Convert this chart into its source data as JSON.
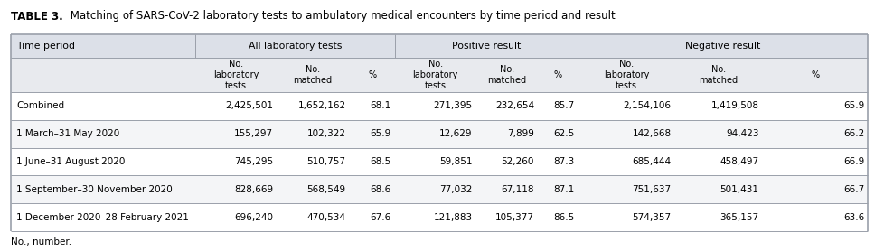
{
  "title_bold": "TABLE 3.",
  "title_rest": " Matching of SARS-CoV-2 laboratory tests to ambulatory medical encounters by time period and result",
  "sub_headers": [
    "No.\nlaboratory\ntests",
    "No.\nmatched",
    "%",
    "No.\nlaboratory\ntests",
    "No.\nmatched",
    "%",
    "No.\nlaboratory\ntests",
    "No.\nmatched",
    "%"
  ],
  "group_labels": [
    "Time period",
    "All laboratory tests",
    "Positive result",
    "Negative result"
  ],
  "rows": [
    [
      "Combined",
      "2,425,501",
      "1,652,162",
      "68.1",
      "271,395",
      "232,654",
      "85.7",
      "2,154,106",
      "1,419,508",
      "65.9"
    ],
    [
      "1 March–31 May 2020",
      "155,297",
      "102,322",
      "65.9",
      "12,629",
      "7,899",
      "62.5",
      "142,668",
      "94,423",
      "66.2"
    ],
    [
      "1 June–31 August 2020",
      "745,295",
      "510,757",
      "68.5",
      "59,851",
      "52,260",
      "87.3",
      "685,444",
      "458,497",
      "66.9"
    ],
    [
      "1 September–30 November 2020",
      "828,669",
      "568,549",
      "68.6",
      "77,032",
      "67,118",
      "87.1",
      "751,637",
      "501,431",
      "66.7"
    ],
    [
      "1 December 2020–28 February 2021",
      "696,240",
      "470,534",
      "67.6",
      "121,883",
      "105,377",
      "86.5",
      "574,357",
      "365,157",
      "63.6"
    ]
  ],
  "footnote": "No., number.",
  "header_bg": "#dce0e8",
  "subheader_bg": "#e8eaee",
  "row_bg_even": "#ffffff",
  "row_bg_odd": "#f4f5f7",
  "line_color": "#9aa0aa",
  "text_color": "#000000",
  "figwidth": 9.68,
  "figheight": 2.78,
  "dpi": 100
}
